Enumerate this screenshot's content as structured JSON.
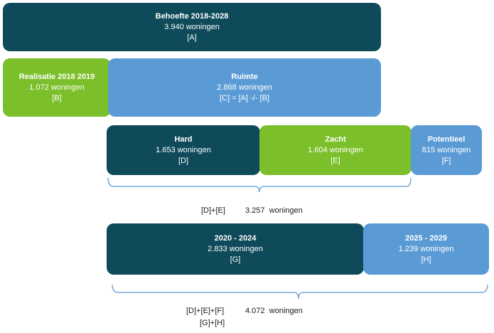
{
  "colors": {
    "dark": "#0e4a5a",
    "green": "#7bbf2a",
    "blue": "#5b9bd5",
    "brace": "#5b9bd5"
  },
  "boxes": {
    "behoefte": {
      "title": "Behoefte 2018-2028",
      "value": "3.940 woningen",
      "code": "[A]"
    },
    "realisatie": {
      "title": "Realisatie 2018 2019",
      "value": "1.072 woningen",
      "code": "[B]"
    },
    "ruimte": {
      "title": "Ruimte",
      "value": "2.868 woningen",
      "code": "[C] = [A] -/- [B]"
    },
    "hard": {
      "title": "Hard",
      "value": "1.653 woningen",
      "code": "[D]"
    },
    "zacht": {
      "title": "Zacht",
      "value": "1.604 woningen",
      "code": "[E]"
    },
    "potentieel": {
      "title": "Potentieel",
      "value": "815 woningen",
      "code": "[F]"
    },
    "p2020": {
      "title": "2020 - 2024",
      "value": "2.833 woningen",
      "code": "[G]"
    },
    "p2025": {
      "title": "2025 - 2029",
      "value": "1.239 woningen",
      "code": "[H]"
    }
  },
  "sums": {
    "first": {
      "formula": "[D]+[E]",
      "value": "3.257  woningen"
    },
    "second": {
      "formula": "[D]+[E]+[F]",
      "value": "4.072  woningen",
      "formula2": "[G]+[H]"
    }
  }
}
